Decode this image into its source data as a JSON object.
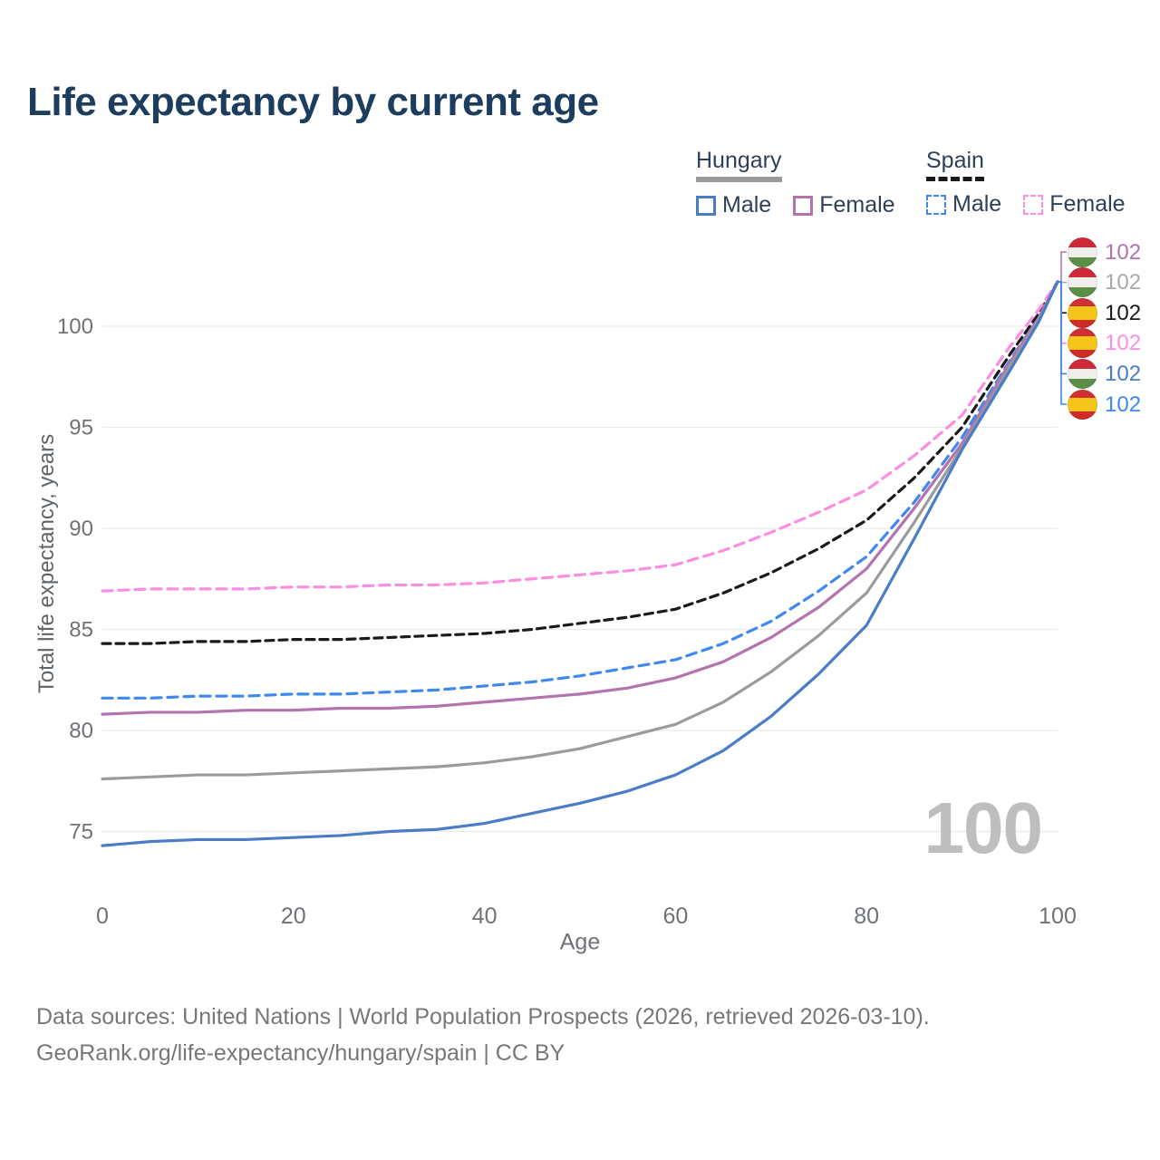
{
  "title": "Life expectancy by current age",
  "watermark": "100",
  "legend": {
    "groups": [
      {
        "label": "Hungary",
        "line_style": "solid",
        "underline_color": "#9a9a9a",
        "items": [
          {
            "label": "Male",
            "color": "#4a7cc7"
          },
          {
            "label": "Female",
            "color": "#b273ae"
          }
        ]
      },
      {
        "label": "Spain",
        "line_style": "dashed",
        "underline_color": "#1a1a1a",
        "items": [
          {
            "label": "Male",
            "color": "#3f88ef"
          },
          {
            "label": "Female",
            "color": "#fb8ee0"
          }
        ]
      }
    ]
  },
  "footer": {
    "line1": "Data sources: United Nations | World Population Prospects (2026, retrieved 2026-03-10).",
    "line2": "GeoRank.org/life-expectancy/hungary/spain | CC BY"
  },
  "chart_data": {
    "type": "line",
    "title": "Life expectancy by current age",
    "xlabel": "Age",
    "ylabel": "Total life expectancy, years",
    "x_ticks": [
      0,
      20,
      40,
      60,
      80,
      100
    ],
    "y_ticks": [
      75,
      80,
      85,
      90,
      95,
      100
    ],
    "xlim": [
      0,
      100
    ],
    "ylim": [
      73.5,
      103
    ],
    "grid": "horizontal",
    "legend_position": "top-right",
    "x": [
      0,
      5,
      10,
      15,
      20,
      25,
      30,
      35,
      40,
      45,
      50,
      55,
      60,
      65,
      70,
      75,
      80,
      85,
      90,
      95,
      98,
      100
    ],
    "series": [
      {
        "name": "Spain Both sexes",
        "country": "Spain",
        "sex": "Both",
        "color": "#1a1a1a",
        "dash": "9 6",
        "values": [
          84.3,
          84.3,
          84.4,
          84.4,
          84.5,
          84.5,
          84.6,
          84.7,
          84.8,
          85.0,
          85.3,
          85.6,
          86.0,
          86.8,
          87.8,
          89.0,
          90.4,
          92.5,
          95.0,
          98.6,
          100.6,
          102.2
        ]
      },
      {
        "name": "Spain Female",
        "country": "Spain",
        "sex": "Female",
        "color": "#fb8ee0",
        "dash": "11 7",
        "values": [
          86.9,
          87.0,
          87.0,
          87.0,
          87.1,
          87.1,
          87.2,
          87.2,
          87.3,
          87.5,
          87.7,
          87.9,
          88.2,
          88.9,
          89.8,
          90.8,
          91.9,
          93.6,
          95.6,
          99.0,
          100.8,
          102.2
        ]
      },
      {
        "name": "Spain Male",
        "country": "Spain",
        "sex": "Male",
        "color": "#3f88ef",
        "dash": "11 7",
        "values": [
          81.6,
          81.6,
          81.7,
          81.7,
          81.8,
          81.8,
          81.9,
          82.0,
          82.2,
          82.4,
          82.7,
          83.1,
          83.5,
          84.3,
          85.4,
          86.9,
          88.6,
          91.3,
          94.5,
          98.3,
          100.4,
          102.2
        ]
      },
      {
        "name": "Hungary Female",
        "country": "Hungary",
        "sex": "Female",
        "color": "#b273ae",
        "dash": null,
        "values": [
          80.8,
          80.9,
          80.9,
          81.0,
          81.0,
          81.1,
          81.1,
          81.2,
          81.4,
          81.6,
          81.8,
          82.1,
          82.6,
          83.4,
          84.6,
          86.1,
          88.0,
          91.0,
          94.2,
          98.2,
          100.4,
          102.2
        ]
      },
      {
        "name": "Hungary Both sexes",
        "country": "Hungary",
        "sex": "Both",
        "color": "#9b9b9b",
        "dash": null,
        "values": [
          77.6,
          77.7,
          77.8,
          77.8,
          77.9,
          78.0,
          78.1,
          78.2,
          78.4,
          78.7,
          79.1,
          79.7,
          80.3,
          81.4,
          82.9,
          84.7,
          86.8,
          90.3,
          94.0,
          98.0,
          100.3,
          102.2
        ]
      },
      {
        "name": "Hungary Male",
        "country": "Hungary",
        "sex": "Male",
        "color": "#4a7cc7",
        "dash": null,
        "values": [
          74.3,
          74.5,
          74.6,
          74.6,
          74.7,
          74.8,
          75.0,
          75.1,
          75.4,
          75.9,
          76.4,
          77.0,
          77.8,
          79.0,
          80.7,
          82.8,
          85.2,
          89.5,
          93.9,
          97.8,
          100.2,
          102.2
        ]
      }
    ],
    "end_labels": [
      {
        "value": "102",
        "flag": "hungary",
        "series": "Hungary Female",
        "color": "#b273ae"
      },
      {
        "value": "102",
        "flag": "hungary",
        "series": "Hungary Both sexes",
        "color": "#a9a9a9"
      },
      {
        "value": "102",
        "flag": "spain",
        "series": "Spain Both sexes",
        "color": "#1a1a1a"
      },
      {
        "value": "102",
        "flag": "spain",
        "series": "Spain Female",
        "color": "#fb8ee0"
      },
      {
        "value": "102",
        "flag": "hungary",
        "series": "Hungary Male",
        "color": "#4a7cc7"
      },
      {
        "value": "102",
        "flag": "spain",
        "series": "Spain Male",
        "color": "#3f88ef"
      }
    ]
  }
}
